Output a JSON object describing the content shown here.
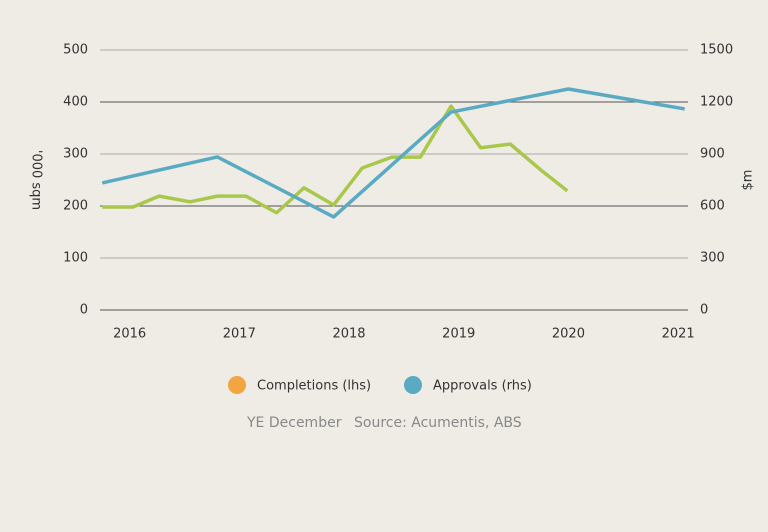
{
  "chart_data": {
    "type": "line",
    "y_label": "'000 sqm",
    "y2_label": "$m",
    "xlim": [
      2015.73,
      2021.09
    ],
    "xticks": [
      2016,
      2017,
      2018,
      2019,
      2020,
      2021
    ],
    "ylim": [
      0,
      500
    ],
    "yticks": [
      0,
      100,
      200,
      300,
      400,
      500
    ],
    "y2lim": [
      0,
      1500
    ],
    "y2ticks": [
      0,
      300,
      600,
      900,
      1200,
      1500
    ],
    "grid": true,
    "series": [
      {
        "name": "Completions (lhs)",
        "color": "#a9c84b",
        "marker_color": "#f2a541",
        "x": [
          2015.75,
          2016.03,
          2016.27,
          2016.55,
          2016.8,
          2017.06,
          2017.34,
          2017.59,
          2017.86,
          2018.12,
          2018.39,
          2018.65,
          2018.93,
          2019.2,
          2019.47,
          2019.75,
          2019.99
        ],
        "values": [
          198,
          198,
          219,
          208,
          219,
          219,
          187,
          235,
          202,
          273,
          294,
          294,
          392,
          312,
          319,
          269,
          229
        ]
      },
      {
        "name": "Approvals (rhs)",
        "color": "#5aaac4",
        "marker_color": "#5aaac4",
        "axis": "y2",
        "x": [
          2015.75,
          2016.8,
          2017.86,
          2018.93,
          2020.0,
          2021.06
        ],
        "values": [
          733,
          883,
          537,
          1142,
          1275,
          1160
        ]
      }
    ],
    "footnote": [
      "YE December",
      "Source: Acumentis, ABS"
    ]
  }
}
